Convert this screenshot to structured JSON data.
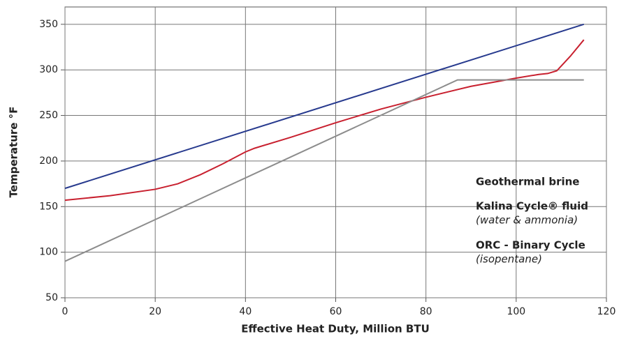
{
  "chart_data": {
    "type": "line",
    "xlabel": "Effective Heat Duty, Million BTU",
    "ylabel": "Temperature °F",
    "xlim": [
      0,
      120
    ],
    "xticks": [
      0,
      20,
      40,
      60,
      80,
      100,
      120
    ],
    "ylim": [
      50,
      369
    ],
    "yticks": [
      50,
      100,
      150,
      200,
      250,
      300,
      350
    ],
    "grid": true,
    "series": [
      {
        "name": "Geothermal brine",
        "color": "#273a8e",
        "x": [
          0,
          115
        ],
        "values": [
          170,
          350
        ]
      },
      {
        "name": "Kalina Cycle® fluid",
        "description": "(water & ammonia)",
        "color": "#c8202f",
        "x": [
          0,
          10,
          20,
          25,
          30,
          35,
          40,
          42,
          50,
          60,
          70,
          80,
          85,
          90,
          100,
          105,
          107,
          109,
          112,
          115
        ],
        "values": [
          157,
          162,
          169,
          175,
          185,
          197,
          210,
          214,
          226,
          242,
          257,
          270,
          276,
          282,
          291,
          295,
          296,
          299,
          315,
          333
        ]
      },
      {
        "name": "ORC - Binary Cycle",
        "description": "(isopentane)",
        "color": "#8c8c8c",
        "x": [
          0,
          87,
          115
        ],
        "values": [
          90,
          289,
          289
        ]
      }
    ]
  }
}
